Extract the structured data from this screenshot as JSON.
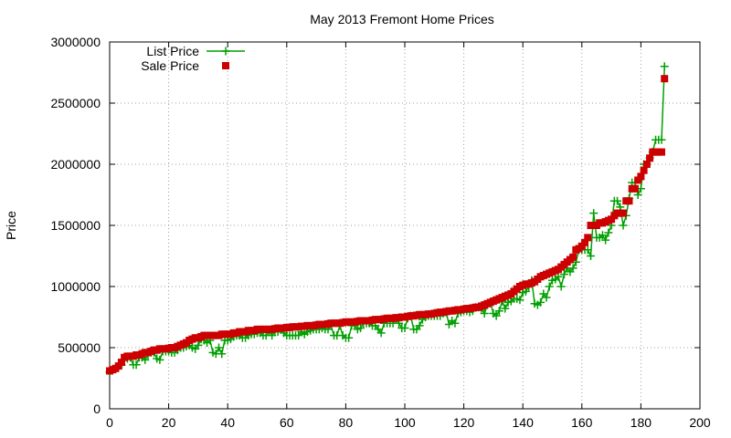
{
  "chart_data": {
    "type": "line",
    "title": "May 2013 Fremont Home Prices",
    "xlabel": "",
    "ylabel": "Price",
    "xlim": [
      0,
      200
    ],
    "ylim": [
      0,
      3000000
    ],
    "x_ticks": [
      0,
      20,
      40,
      60,
      80,
      100,
      120,
      140,
      160,
      180,
      200
    ],
    "y_ticks": [
      0,
      500000,
      1000000,
      1500000,
      2000000,
      2500000,
      3000000
    ],
    "grid": true,
    "legend_position": "top-left",
    "colors": {
      "list": "#00a000",
      "sale": "#cc0000"
    },
    "series": [
      {
        "name": "List Price",
        "style": "line-plus",
        "values": [
          300000,
          320000,
          330000,
          340000,
          360000,
          400000,
          410000,
          420000,
          360000,
          360000,
          420000,
          420000,
          400000,
          440000,
          460000,
          460000,
          410000,
          400000,
          470000,
          470000,
          470000,
          460000,
          460000,
          480000,
          500000,
          500000,
          510000,
          520000,
          500000,
          490000,
          520000,
          570000,
          560000,
          540000,
          560000,
          460000,
          450000,
          500000,
          450000,
          560000,
          560000,
          570000,
          590000,
          600000,
          600000,
          580000,
          580000,
          600000,
          610000,
          610000,
          620000,
          620000,
          600000,
          600000,
          630000,
          600000,
          630000,
          630000,
          650000,
          620000,
          600000,
          600000,
          600000,
          600000,
          600000,
          630000,
          610000,
          630000,
          640000,
          650000,
          650000,
          650000,
          660000,
          650000,
          650000,
          680000,
          600000,
          600000,
          680000,
          600000,
          580000,
          580000,
          680000,
          680000,
          650000,
          660000,
          700000,
          700000,
          700000,
          680000,
          680000,
          650000,
          620000,
          700000,
          700000,
          700000,
          700000,
          730000,
          700000,
          660000,
          660000,
          740000,
          760000,
          650000,
          650000,
          680000,
          730000,
          750000,
          760000,
          760000,
          760000,
          760000,
          760000,
          780000,
          790000,
          690000,
          720000,
          700000,
          780000,
          790000,
          800000,
          800000,
          790000,
          800000,
          830000,
          830000,
          820000,
          780000,
          850000,
          870000,
          780000,
          760000,
          800000,
          880000,
          820000,
          870000,
          880000,
          900000,
          900000,
          890000,
          950000,
          960000,
          1000000,
          1050000,
          860000,
          850000,
          870000,
          940000,
          910000,
          1000000,
          1050000,
          1060000,
          1080000,
          1000000,
          1100000,
          1150000,
          1120000,
          1150000,
          1200000,
          1300000,
          1300000,
          1300000,
          1300000,
          1250000,
          1600000,
          1400000,
          1400000,
          1420000,
          1380000,
          1440000,
          1500000,
          1700000,
          1700000,
          1650000,
          1500000,
          1580000,
          1720000,
          1850000,
          1850000,
          1750000,
          1800000,
          2000000,
          2000000,
          2050000,
          2100000,
          2200000,
          2200000,
          2200000,
          2800000
        ]
      },
      {
        "name": "Sale Price",
        "style": "square",
        "values": [
          310000,
          320000,
          330000,
          350000,
          380000,
          420000,
          430000,
          430000,
          430000,
          440000,
          440000,
          450000,
          460000,
          460000,
          470000,
          480000,
          480000,
          490000,
          490000,
          490000,
          495000,
          500000,
          500000,
          510000,
          520000,
          530000,
          540000,
          560000,
          570000,
          580000,
          580000,
          590000,
          600000,
          600000,
          600000,
          600000,
          600000,
          600000,
          610000,
          610000,
          610000,
          610000,
          620000,
          620000,
          630000,
          630000,
          630000,
          640000,
          640000,
          640000,
          650000,
          650000,
          650000,
          650000,
          650000,
          650000,
          655000,
          660000,
          660000,
          660000,
          665000,
          665000,
          670000,
          670000,
          670000,
          675000,
          675000,
          680000,
          680000,
          680000,
          685000,
          690000,
          690000,
          690000,
          695000,
          700000,
          700000,
          700000,
          700000,
          705000,
          710000,
          710000,
          710000,
          710000,
          715000,
          720000,
          720000,
          720000,
          720000,
          725000,
          730000,
          730000,
          730000,
          735000,
          740000,
          740000,
          740000,
          745000,
          745000,
          750000,
          750000,
          755000,
          760000,
          760000,
          765000,
          770000,
          770000,
          770000,
          775000,
          775000,
          780000,
          785000,
          790000,
          790000,
          795000,
          800000,
          800000,
          805000,
          810000,
          810000,
          815000,
          820000,
          820000,
          825000,
          830000,
          830000,
          840000,
          850000,
          860000,
          870000,
          880000,
          890000,
          900000,
          910000,
          920000,
          930000,
          940000,
          960000,
          980000,
          1000000,
          1010000,
          1020000,
          1020000,
          1030000,
          1040000,
          1060000,
          1080000,
          1090000,
          1100000,
          1110000,
          1120000,
          1130000,
          1140000,
          1160000,
          1180000,
          1200000,
          1220000,
          1240000,
          1300000,
          1310000,
          1330000,
          1360000,
          1400000,
          1500000,
          1500000,
          1500000,
          1520000,
          1520000,
          1530000,
          1540000,
          1550000,
          1580000,
          1600000,
          1600000,
          1600000,
          1700000,
          1700000,
          1800000,
          1800000,
          1870000,
          1900000,
          1950000,
          2000000,
          2050000,
          2100000,
          2100000,
          2100000,
          2100000,
          2700000
        ]
      }
    ]
  }
}
